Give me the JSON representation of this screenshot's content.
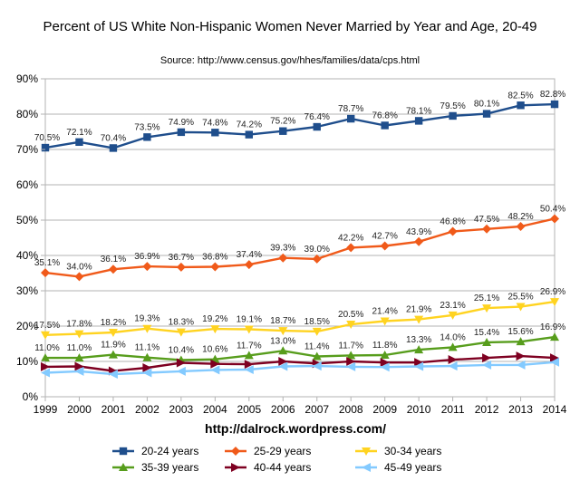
{
  "chart_data": {
    "type": "line",
    "title": "Percent of US White Non-Hispanic Women Never Married by Year and Age, 20-49",
    "subtitle": "Source:  http://www.census.gov/hhes/families/data/cps.html",
    "footer": "http://dalrock.wordpress.com/",
    "xlabel": "",
    "ylabel": "",
    "x": [
      1999,
      2000,
      2001,
      2002,
      2003,
      2004,
      2005,
      2006,
      2007,
      2008,
      2009,
      2010,
      2011,
      2012,
      2013,
      2014
    ],
    "ylim": [
      0,
      90
    ],
    "yticks": [
      0,
      10,
      20,
      30,
      40,
      50,
      60,
      70,
      80,
      90
    ],
    "ytick_labels": [
      "0%",
      "10%",
      "20%",
      "30%",
      "40%",
      "50%",
      "60%",
      "70%",
      "80%",
      "90%"
    ],
    "grid": true,
    "legend_position": "bottom",
    "series": [
      {
        "name": "20-24 years",
        "color": "#1f4e8c",
        "marker": "square",
        "values": [
          70.5,
          72.1,
          70.4,
          73.5,
          74.9,
          74.8,
          74.2,
          75.2,
          76.4,
          78.7,
          76.8,
          78.1,
          79.5,
          80.1,
          82.5,
          82.8
        ],
        "labels": [
          "70.5%",
          "72.1%",
          "70.4%",
          "73.5%",
          "74.9%",
          "74.8%",
          "74.2%",
          "75.2%",
          "76.4%",
          "78.7%",
          "76.8%",
          "78.1%",
          "79.5%",
          "80.1%",
          "82.5%",
          "82.8%"
        ]
      },
      {
        "name": "25-29 years",
        "color": "#f05a1a",
        "marker": "diamond",
        "values": [
          35.1,
          34.0,
          36.1,
          36.9,
          36.7,
          36.8,
          37.4,
          39.3,
          39.0,
          42.2,
          42.7,
          43.9,
          46.8,
          47.5,
          48.2,
          50.4
        ],
        "labels": [
          "35.1%",
          "34.0%",
          "36.1%",
          "36.9%",
          "36.7%",
          "36.8%",
          "37.4%",
          "39.3%",
          "39.0%",
          "42.2%",
          "42.7%",
          "43.9%",
          "46.8%",
          "47.5%",
          "48.2%",
          "50.4%"
        ]
      },
      {
        "name": "30-34 years",
        "color": "#ffd320",
        "marker": "triangle-down",
        "values": [
          17.5,
          17.8,
          18.2,
          19.3,
          18.3,
          19.2,
          19.1,
          18.7,
          18.5,
          20.5,
          21.4,
          21.9,
          23.1,
          25.1,
          25.5,
          26.9
        ],
        "labels": [
          "17.5%",
          "17.8%",
          "18.2%",
          "19.3%",
          "18.3%",
          "19.2%",
          "19.1%",
          "18.7%",
          "18.5%",
          "20.5%",
          "21.4%",
          "21.9%",
          "23.1%",
          "25.1%",
          "25.5%",
          "26.9%"
        ]
      },
      {
        "name": "35-39 years",
        "color": "#579d1c",
        "marker": "triangle-up",
        "values": [
          11.0,
          11.0,
          11.9,
          11.1,
          10.4,
          10.6,
          11.7,
          13.0,
          11.4,
          11.7,
          11.8,
          13.3,
          14.0,
          15.4,
          15.6,
          16.9
        ],
        "labels": [
          "11.0%",
          "11.0%",
          "11.9%",
          "11.1%",
          "10.4%",
          "10.6%",
          "11.7%",
          "13.0%",
          "11.4%",
          "11.7%",
          "11.8%",
          "13.3%",
          "14.0%",
          "15.4%",
          "15.6%",
          "16.9%"
        ]
      },
      {
        "name": "40-44 years",
        "color": "#7e0021",
        "marker": "arrow-right",
        "values": [
          8.5,
          8.6,
          7.3,
          8.2,
          9.6,
          9.3,
          9.2,
          10.0,
          9.4,
          10.0,
          9.7,
          9.7,
          10.5,
          11.0,
          11.5,
          11.0
        ],
        "labels": []
      },
      {
        "name": "45-49 years",
        "color": "#83caff",
        "marker": "arrow-left",
        "values": [
          6.8,
          7.2,
          6.4,
          6.8,
          7.2,
          7.6,
          7.7,
          8.6,
          8.7,
          8.5,
          8.4,
          8.6,
          8.7,
          9.0,
          9.0,
          9.8
        ],
        "labels": []
      }
    ]
  }
}
